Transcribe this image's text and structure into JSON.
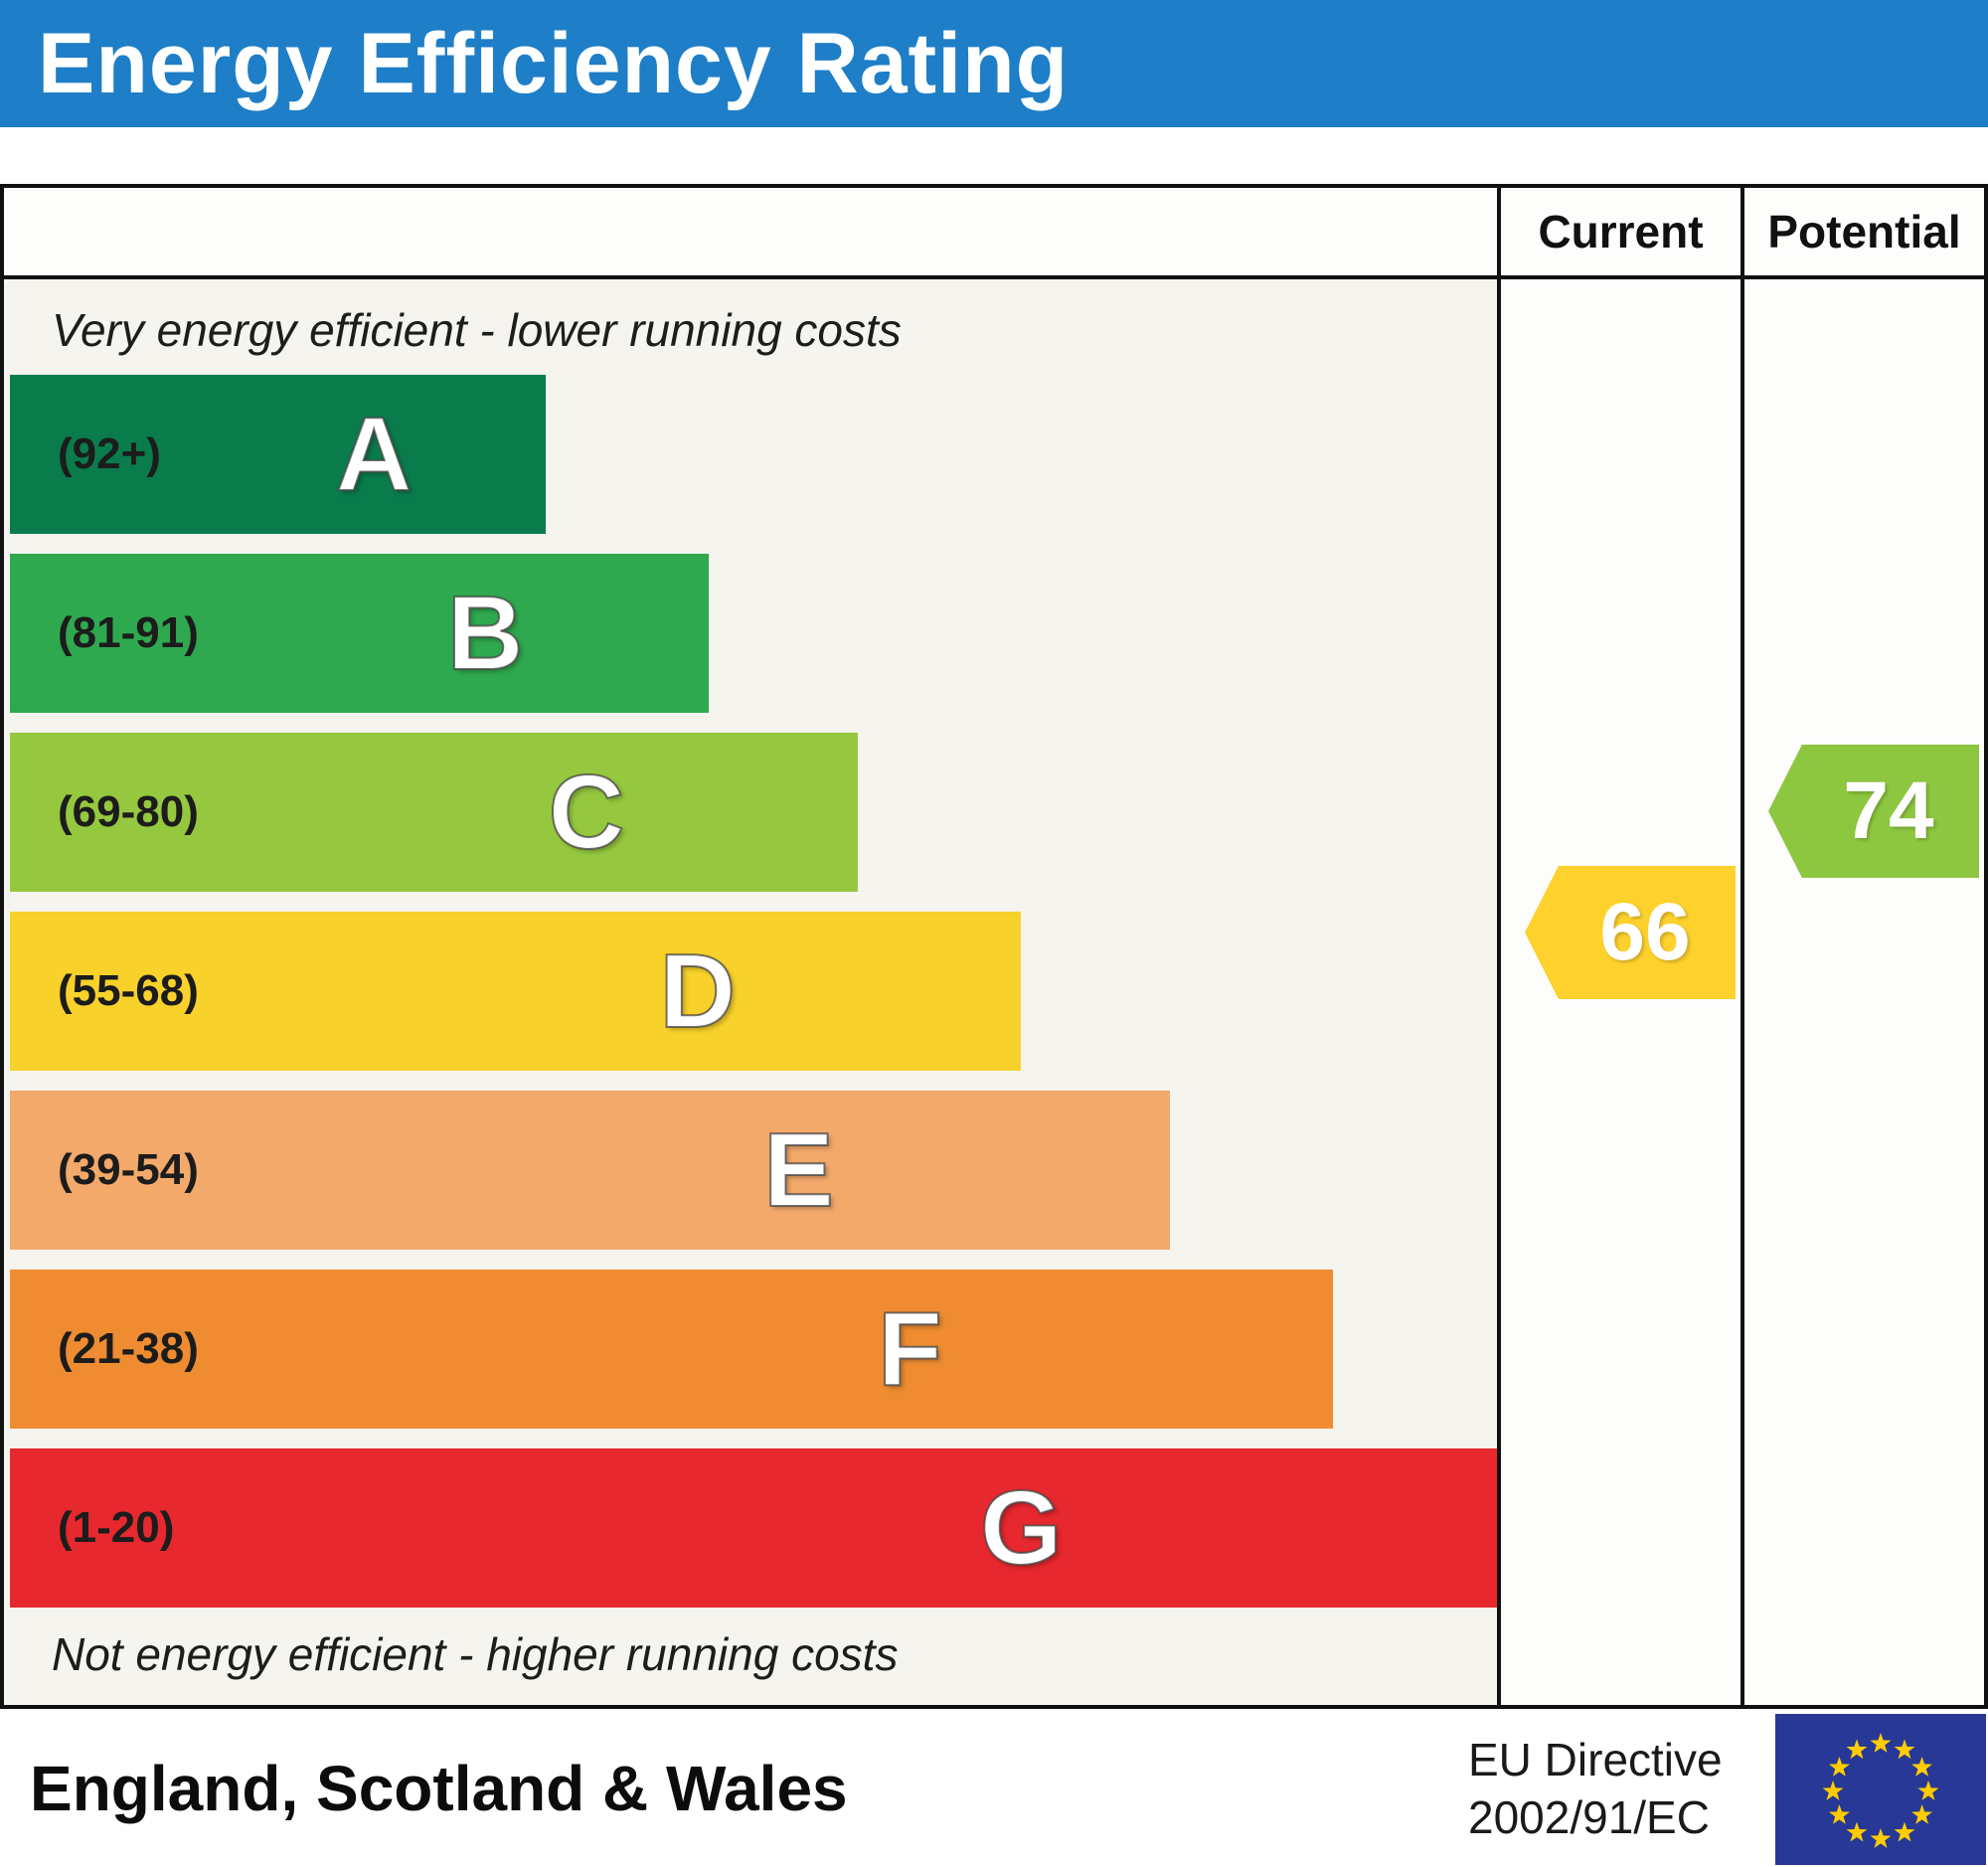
{
  "title": "Energy Efficiency Rating",
  "columns": {
    "current": "Current",
    "potential": "Potential"
  },
  "captions": {
    "top": "Very energy efficient - lower running costs",
    "bottom": "Not energy efficient - higher running costs"
  },
  "chart_data": {
    "type": "bar",
    "title": "Energy Efficiency Rating",
    "orientation": "horizontal",
    "bands": [
      {
        "letter": "A",
        "range_label": "(92+)",
        "color": "#0a7c4c",
        "width_pct": 36
      },
      {
        "letter": "B",
        "range_label": "(81-91)",
        "color": "#2fa94f",
        "width_pct": 47
      },
      {
        "letter": "C",
        "range_label": "(69-80)",
        "color": "#95c83e",
        "width_pct": 57
      },
      {
        "letter": "D",
        "range_label": "(55-68)",
        "color": "#f8d12b",
        "width_pct": 68
      },
      {
        "letter": "E",
        "range_label": "(39-54)",
        "color": "#f3a96a",
        "width_pct": 78
      },
      {
        "letter": "F",
        "range_label": "(21-38)",
        "color": "#ef8c31",
        "width_pct": 89
      },
      {
        "letter": "G",
        "range_label": "(1-20)",
        "color": "#e7282f",
        "width_pct": 100
      }
    ],
    "current": {
      "label": "Current",
      "value": 66,
      "band": "D",
      "color": "#fed12c"
    },
    "potential": {
      "label": "Potential",
      "value": 74,
      "band": "C",
      "color": "#8dc63f"
    },
    "legend_position": "none",
    "grid": false
  },
  "footer": {
    "region": "England, Scotland & Wales",
    "directive_line1": "EU Directive",
    "directive_line2": "2002/91/EC",
    "eu_flag": {
      "background": "#273896",
      "star_color": "#ffcc00",
      "star_count": 12
    }
  },
  "theme": {
    "header_blue": "#1e7ec7",
    "scale_background": "#f5f4ef",
    "border": "#111111"
  }
}
